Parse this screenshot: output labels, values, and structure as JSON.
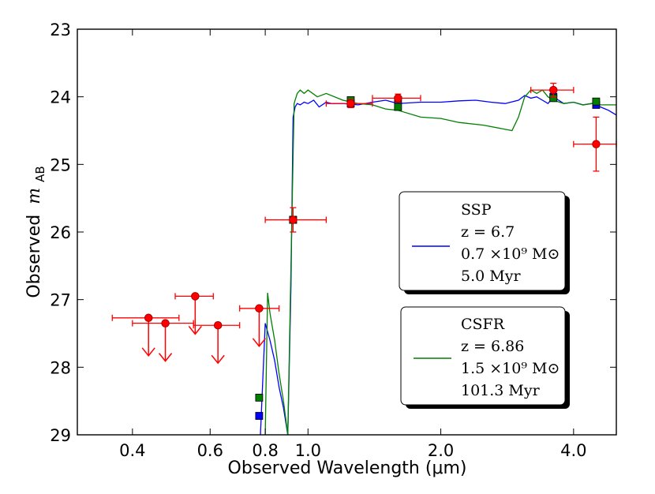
{
  "chart_data": {
    "type": "scatter",
    "xlabel": "Observed Wavelength (μm)",
    "ylabel_text": "Observed",
    "ylabel_math": "m",
    "ylabel_sub": "AB",
    "xscale": "log",
    "xlim": [
      0.3,
      5.0
    ],
    "ylim": [
      29,
      23
    ],
    "xticks": [
      {
        "value": 0.4,
        "label": "0.4"
      },
      {
        "value": 0.6,
        "label": "0.6"
      },
      {
        "value": 0.8,
        "label": "0.8"
      },
      {
        "value": 1.0,
        "label": "1.0"
      },
      {
        "value": 2.0,
        "label": "2.0"
      },
      {
        "value": 4.0,
        "label": "4.0"
      }
    ],
    "yticks": [
      {
        "value": 23,
        "label": "23"
      },
      {
        "value": 24,
        "label": "24"
      },
      {
        "value": 25,
        "label": "25"
      },
      {
        "value": 26,
        "label": "26"
      },
      {
        "value": 27,
        "label": "27"
      },
      {
        "value": 28,
        "label": "28"
      },
      {
        "value": 29,
        "label": "29"
      }
    ],
    "colors": {
      "ssp": "#0000ff",
      "csfr": "#007f00",
      "observed": "#ff0000",
      "observed_edge": "#990000"
    },
    "series": [
      {
        "name": "SSP",
        "kind": "model_spectrum",
        "color_key": "ssp",
        "x": [
          0.78,
          0.8,
          0.82,
          0.84,
          0.86,
          0.88,
          0.9,
          0.915,
          0.925,
          0.935,
          0.945,
          0.96,
          0.98,
          1.0,
          1.03,
          1.06,
          1.1,
          1.13,
          1.2,
          1.3,
          1.4,
          1.5,
          1.6,
          1.8,
          2.0,
          2.2,
          2.4,
          2.6,
          2.8,
          3.0,
          3.1,
          3.2,
          3.3,
          3.4,
          3.5,
          3.6,
          3.7,
          3.8,
          4.0,
          4.2,
          4.4,
          4.6,
          4.8,
          5.0
        ],
        "y": [
          29.0,
          27.35,
          27.6,
          27.9,
          28.3,
          28.6,
          29.0,
          26.8,
          24.3,
          24.15,
          24.1,
          24.12,
          24.08,
          24.1,
          24.05,
          24.15,
          24.08,
          24.1,
          24.1,
          24.12,
          24.08,
          24.05,
          24.1,
          24.08,
          24.08,
          24.06,
          24.05,
          24.08,
          24.1,
          24.05,
          23.98,
          24.02,
          24.0,
          24.05,
          24.1,
          24.0,
          24.05,
          24.1,
          24.08,
          24.12,
          24.1,
          24.15,
          24.2,
          24.27
        ]
      },
      {
        "name": "CSFR",
        "kind": "model_spectrum",
        "color_key": "csfr",
        "x": [
          0.8,
          0.81,
          0.82,
          0.84,
          0.86,
          0.88,
          0.9,
          0.915,
          0.93,
          0.945,
          0.96,
          0.98,
          1.0,
          1.05,
          1.1,
          1.2,
          1.3,
          1.4,
          1.5,
          1.6,
          1.8,
          2.0,
          2.2,
          2.5,
          2.9,
          3.0,
          3.1,
          3.2,
          3.3,
          3.4,
          3.5,
          3.6,
          3.8,
          4.0,
          4.2,
          4.4,
          4.6,
          5.0
        ],
        "y": [
          29.0,
          26.9,
          27.2,
          27.6,
          28.1,
          28.5,
          29.0,
          26.5,
          24.1,
          23.95,
          23.9,
          23.95,
          23.9,
          24.0,
          23.95,
          24.05,
          24.1,
          24.12,
          24.18,
          24.2,
          24.3,
          24.32,
          24.38,
          24.42,
          24.5,
          24.3,
          24.0,
          23.9,
          23.95,
          23.9,
          24.0,
          24.05,
          24.1,
          24.08,
          24.12,
          24.1,
          24.12,
          24.12
        ]
      },
      {
        "name": "SSP bandpass",
        "kind": "model_photometry",
        "color_key": "ssp",
        "x": [
          0.775,
          0.925,
          1.25,
          1.6,
          3.6,
          4.5
        ],
        "y": [
          28.72,
          25.82,
          24.1,
          24.05,
          24.0,
          24.12
        ]
      },
      {
        "name": "CSFR bandpass",
        "kind": "model_photometry",
        "color_key": "csfr",
        "x": [
          0.775,
          0.925,
          1.25,
          1.6,
          3.6,
          4.5
        ],
        "y": [
          28.45,
          25.82,
          24.05,
          24.15,
          24.02,
          24.07
        ]
      },
      {
        "name": "Observed",
        "kind": "observed_detections",
        "color_key": "observed",
        "points": [
          {
            "x": 0.925,
            "y": 25.82,
            "xlo": 0.8,
            "xhi": 1.1,
            "yerr": 0.18
          },
          {
            "x": 1.25,
            "y": 24.1,
            "xlo": 1.1,
            "xhi": 1.4,
            "yerr": 0.06
          },
          {
            "x": 1.6,
            "y": 24.02,
            "xlo": 1.4,
            "xhi": 1.8,
            "yerr": 0.06
          },
          {
            "x": 3.6,
            "y": 23.9,
            "xlo": 3.2,
            "xhi": 4.0,
            "yerr": 0.1
          },
          {
            "x": 4.5,
            "y": 24.7,
            "xlo": 4.0,
            "xhi": 5.0,
            "yerr": 0.4
          }
        ]
      },
      {
        "name": "Upper limits",
        "kind": "observed_upper_limits",
        "color_key": "observed",
        "points": [
          {
            "x": 0.435,
            "y": 27.27,
            "xlo": 0.36,
            "xhi": 0.51
          },
          {
            "x": 0.475,
            "y": 27.35,
            "xlo": 0.4,
            "xhi": 0.55
          },
          {
            "x": 0.555,
            "y": 26.95,
            "xlo": 0.5,
            "xhi": 0.61
          },
          {
            "x": 0.625,
            "y": 27.38,
            "xlo": 0.55,
            "xhi": 0.7
          },
          {
            "x": 0.775,
            "y": 27.13,
            "xlo": 0.7,
            "xhi": 0.86
          }
        ]
      }
    ],
    "legend": [
      {
        "color_key": "ssp",
        "lines": [
          "SSP",
          "z = 6.7",
          "0.7 ×10⁹ M⊙",
          "5.0 Myr"
        ]
      },
      {
        "color_key": "csfr",
        "lines": [
          "CSFR",
          "z = 6.86",
          "1.5 ×10⁹ M⊙",
          "101.3 Myr"
        ]
      }
    ]
  }
}
